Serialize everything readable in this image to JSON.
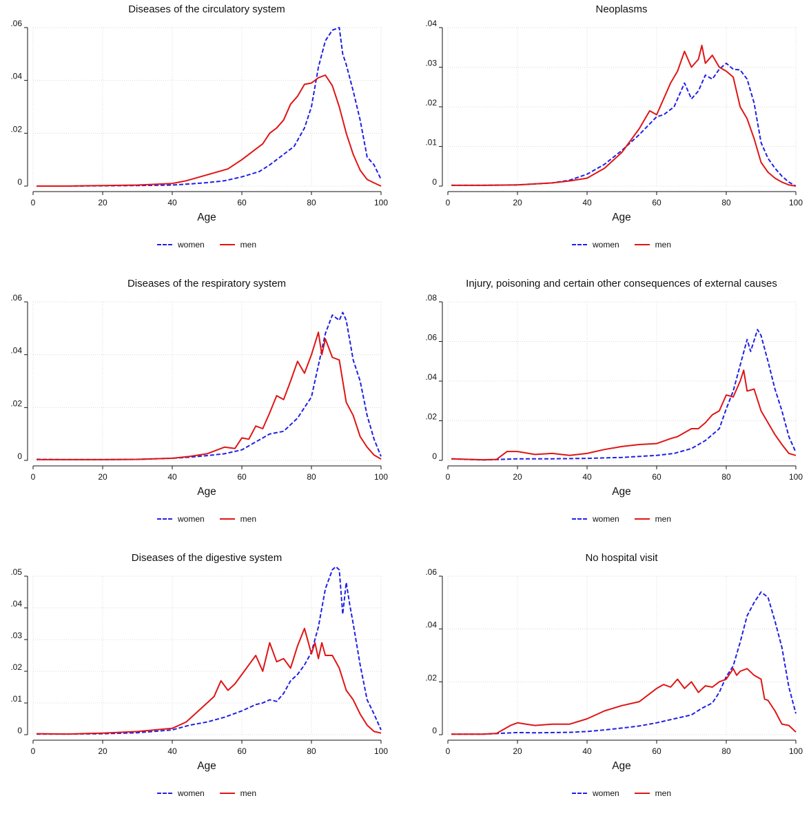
{
  "chart_data": [
    {
      "type": "line",
      "title": "Diseases of the circulatory system",
      "xlabel": "Age",
      "xlim": [
        0,
        100
      ],
      "ylim": [
        0,
        0.06
      ],
      "xticks": [
        0,
        20,
        40,
        60,
        80,
        100
      ],
      "xtick_labels": [
        "0",
        "20",
        "40",
        "60",
        "80",
        "100"
      ],
      "yticks": [
        0,
        0.02,
        0.04,
        0.06
      ],
      "ytick_labels": [
        "0",
        ".02",
        ".04",
        ".06"
      ],
      "grid": true,
      "legend_position": "bottom",
      "series": [
        {
          "name": "women",
          "color": "#1f1fe6",
          "dash": "dashed",
          "x": [
            1,
            10,
            20,
            30,
            40,
            45,
            50,
            55,
            60,
            65,
            68,
            70,
            72,
            75,
            78,
            80,
            82,
            84,
            86,
            88,
            89,
            90,
            92,
            94,
            96,
            98,
            100
          ],
          "y": [
            0,
            0,
            0.0001,
            0.0002,
            0.0004,
            0.0008,
            0.0013,
            0.002,
            0.0035,
            0.0055,
            0.008,
            0.01,
            0.012,
            0.015,
            0.022,
            0.03,
            0.045,
            0.055,
            0.059,
            0.06,
            0.05,
            0.046,
            0.036,
            0.025,
            0.011,
            0.008,
            0.0025
          ]
        },
        {
          "name": "men",
          "color": "#e01414",
          "dash": "solid",
          "x": [
            1,
            10,
            20,
            30,
            40,
            44,
            48,
            52,
            56,
            60,
            63,
            66,
            68,
            70,
            72,
            74,
            76,
            78,
            80,
            82,
            84,
            86,
            88,
            90,
            92,
            94,
            96,
            98,
            100
          ],
          "y": [
            0,
            0,
            0.0002,
            0.0004,
            0.001,
            0.002,
            0.0035,
            0.005,
            0.0065,
            0.01,
            0.013,
            0.016,
            0.02,
            0.022,
            0.025,
            0.031,
            0.034,
            0.0385,
            0.039,
            0.041,
            0.042,
            0.038,
            0.03,
            0.02,
            0.012,
            0.006,
            0.0025,
            0.0012,
            0
          ]
        }
      ]
    },
    {
      "type": "line",
      "title": "Neoplasms",
      "xlabel": "Age",
      "xlim": [
        0,
        100
      ],
      "ylim": [
        0,
        0.04
      ],
      "xticks": [
        0,
        20,
        40,
        60,
        80,
        100
      ],
      "xtick_labels": [
        "0",
        "20",
        "40",
        "60",
        "80",
        "100"
      ],
      "yticks": [
        0,
        0.01,
        0.02,
        0.03,
        0.04
      ],
      "ytick_labels": [
        "0",
        ".01",
        ".02",
        ".03",
        ".04"
      ],
      "grid": true,
      "legend_position": "bottom",
      "series": [
        {
          "name": "women",
          "color": "#1f1fe6",
          "dash": "dashed",
          "x": [
            1,
            10,
            20,
            30,
            35,
            40,
            45,
            50,
            55,
            60,
            62,
            65,
            68,
            70,
            72,
            74,
            76,
            78,
            80,
            82,
            84,
            86,
            88,
            90,
            92,
            94,
            96,
            98,
            100
          ],
          "y": [
            0.0002,
            0.0002,
            0.0003,
            0.0008,
            0.0015,
            0.003,
            0.0055,
            0.009,
            0.013,
            0.0175,
            0.018,
            0.02,
            0.026,
            0.022,
            0.024,
            0.028,
            0.027,
            0.0295,
            0.031,
            0.0295,
            0.0293,
            0.027,
            0.021,
            0.011,
            0.007,
            0.0045,
            0.0025,
            0.001,
            0
          ]
        },
        {
          "name": "men",
          "color": "#e01414",
          "dash": "solid",
          "x": [
            1,
            10,
            20,
            30,
            35,
            40,
            45,
            50,
            55,
            58,
            60,
            62,
            64,
            66,
            68,
            70,
            72,
            73,
            74,
            76,
            78,
            80,
            82,
            84,
            86,
            88,
            90,
            92,
            94,
            96,
            98,
            100
          ],
          "y": [
            0.0002,
            0.0002,
            0.0003,
            0.0008,
            0.0013,
            0.002,
            0.0045,
            0.0085,
            0.0145,
            0.019,
            0.018,
            0.022,
            0.026,
            0.029,
            0.034,
            0.03,
            0.032,
            0.0355,
            0.031,
            0.033,
            0.03,
            0.029,
            0.0275,
            0.02,
            0.017,
            0.012,
            0.006,
            0.0035,
            0.002,
            0.001,
            0.0003,
            0
          ]
        }
      ]
    },
    {
      "type": "line",
      "title": "Diseases of the respiratory system",
      "xlabel": "Age",
      "xlim": [
        0,
        100
      ],
      "ylim": [
        0,
        0.06
      ],
      "xticks": [
        0,
        20,
        40,
        60,
        80,
        100
      ],
      "xtick_labels": [
        "0",
        "20",
        "40",
        "60",
        "80",
        "100"
      ],
      "yticks": [
        0,
        0.02,
        0.04,
        0.06
      ],
      "ytick_labels": [
        "0",
        ".02",
        ".04",
        ".06"
      ],
      "grid": true,
      "legend_position": "bottom",
      "series": [
        {
          "name": "women",
          "color": "#1f1fe6",
          "dash": "dashed",
          "x": [
            1,
            10,
            20,
            30,
            40,
            45,
            50,
            55,
            60,
            64,
            68,
            72,
            76,
            80,
            82,
            84,
            86,
            88,
            89,
            90,
            92,
            94,
            96,
            98,
            100
          ],
          "y": [
            0.0004,
            0.0003,
            0.0003,
            0.0004,
            0.0008,
            0.0012,
            0.0018,
            0.0025,
            0.004,
            0.007,
            0.01,
            0.011,
            0.016,
            0.024,
            0.036,
            0.048,
            0.055,
            0.053,
            0.056,
            0.053,
            0.038,
            0.03,
            0.017,
            0.008,
            0.0015
          ]
        },
        {
          "name": "men",
          "color": "#e01414",
          "dash": "solid",
          "x": [
            1,
            10,
            20,
            30,
            40,
            45,
            50,
            55,
            58,
            60,
            62,
            64,
            66,
            68,
            70,
            72,
            74,
            76,
            78,
            80,
            82,
            83,
            84,
            86,
            88,
            90,
            92,
            94,
            96,
            98,
            100
          ],
          "y": [
            0.0003,
            0.0003,
            0.0003,
            0.0004,
            0.0008,
            0.0015,
            0.0025,
            0.005,
            0.0045,
            0.0085,
            0.008,
            0.013,
            0.012,
            0.018,
            0.0245,
            0.023,
            0.03,
            0.0375,
            0.033,
            0.04,
            0.0485,
            0.04,
            0.046,
            0.039,
            0.038,
            0.022,
            0.017,
            0.009,
            0.005,
            0.002,
            0.0005
          ]
        }
      ]
    },
    {
      "type": "line",
      "title": "Injury, poisoning and certain other consequences of external causes",
      "xlabel": "Age",
      "xlim": [
        0,
        100
      ],
      "ylim": [
        0,
        0.08
      ],
      "xticks": [
        0,
        20,
        40,
        60,
        80,
        100
      ],
      "xtick_labels": [
        "0",
        "20",
        "40",
        "60",
        "80",
        "100"
      ],
      "yticks": [
        0,
        0.02,
        0.04,
        0.06,
        0.08
      ],
      "ytick_labels": [
        "0",
        ".02",
        ".04",
        ".06",
        ".08"
      ],
      "grid": true,
      "legend_position": "bottom",
      "series": [
        {
          "name": "women",
          "color": "#1f1fe6",
          "dash": "dashed",
          "x": [
            1,
            10,
            15,
            20,
            30,
            40,
            50,
            60,
            65,
            70,
            74,
            78,
            80,
            82,
            84,
            86,
            87,
            89,
            90,
            92,
            94,
            96,
            98,
            100
          ],
          "y": [
            0.0008,
            0.0002,
            0.0005,
            0.0008,
            0.0008,
            0.001,
            0.0015,
            0.0025,
            0.0035,
            0.006,
            0.01,
            0.016,
            0.026,
            0.035,
            0.048,
            0.061,
            0.055,
            0.066,
            0.063,
            0.05,
            0.036,
            0.025,
            0.012,
            0.004
          ]
        },
        {
          "name": "men",
          "color": "#e01414",
          "dash": "solid",
          "x": [
            1,
            10,
            14,
            17,
            20,
            25,
            30,
            35,
            40,
            45,
            50,
            55,
            60,
            64,
            66,
            68,
            70,
            72,
            74,
            76,
            78,
            80,
            82,
            84,
            85,
            86,
            88,
            90,
            92,
            94,
            96,
            98,
            100
          ],
          "y": [
            0.0008,
            0.0003,
            0.0005,
            0.0045,
            0.0045,
            0.003,
            0.0035,
            0.0025,
            0.0035,
            0.0055,
            0.007,
            0.008,
            0.0085,
            0.011,
            0.012,
            0.014,
            0.016,
            0.016,
            0.019,
            0.023,
            0.025,
            0.033,
            0.032,
            0.04,
            0.0455,
            0.035,
            0.036,
            0.025,
            0.019,
            0.013,
            0.008,
            0.0035,
            0.0025
          ]
        }
      ]
    },
    {
      "type": "line",
      "title": "Diseases of the digestive system",
      "xlabel": "Age",
      "xlim": [
        0,
        100
      ],
      "ylim": [
        0,
        0.05
      ],
      "xticks": [
        0,
        20,
        40,
        60,
        80,
        100
      ],
      "xtick_labels": [
        "0",
        "20",
        "40",
        "60",
        "80",
        "100"
      ],
      "yticks": [
        0,
        0.01,
        0.02,
        0.03,
        0.04,
        0.05
      ],
      "ytick_labels": [
        "0",
        ".01",
        ".02",
        ".03",
        ".04",
        ".05"
      ],
      "grid": true,
      "legend_position": "bottom",
      "series": [
        {
          "name": "women",
          "color": "#1f1fe6",
          "dash": "dashed",
          "x": [
            1,
            10,
            20,
            30,
            40,
            45,
            50,
            55,
            60,
            62,
            64,
            66,
            68,
            70,
            72,
            74,
            76,
            78,
            80,
            82,
            84,
            86,
            87,
            88,
            89,
            90,
            91,
            92,
            94,
            96,
            98,
            100
          ],
          "y": [
            0.0002,
            0.0002,
            0.0003,
            0.0006,
            0.0015,
            0.003,
            0.004,
            0.0055,
            0.0075,
            0.0085,
            0.0095,
            0.01,
            0.011,
            0.0105,
            0.013,
            0.017,
            0.019,
            0.022,
            0.026,
            0.034,
            0.046,
            0.052,
            0.053,
            0.052,
            0.038,
            0.048,
            0.041,
            0.035,
            0.022,
            0.011,
            0.0065,
            0.0015
          ]
        },
        {
          "name": "men",
          "color": "#e01414",
          "dash": "solid",
          "x": [
            1,
            10,
            20,
            30,
            40,
            44,
            48,
            52,
            54,
            56,
            58,
            60,
            62,
            64,
            66,
            68,
            70,
            72,
            74,
            76,
            78,
            80,
            81,
            82,
            83,
            84,
            86,
            88,
            90,
            92,
            94,
            96,
            98,
            100
          ],
          "y": [
            0.0003,
            0.0002,
            0.0005,
            0.001,
            0.002,
            0.004,
            0.008,
            0.012,
            0.017,
            0.014,
            0.016,
            0.019,
            0.022,
            0.025,
            0.02,
            0.029,
            0.023,
            0.024,
            0.021,
            0.028,
            0.0335,
            0.0255,
            0.029,
            0.024,
            0.029,
            0.025,
            0.025,
            0.021,
            0.014,
            0.011,
            0.0065,
            0.003,
            0.001,
            0.0005
          ]
        }
      ]
    },
    {
      "type": "line",
      "title": "No hospital visit",
      "xlabel": "Age",
      "xlim": [
        0,
        100
      ],
      "ylim": [
        0,
        0.06
      ],
      "xticks": [
        0,
        20,
        40,
        60,
        80,
        100
      ],
      "xtick_labels": [
        "0",
        "20",
        "40",
        "60",
        "80",
        "100"
      ],
      "yticks": [
        0,
        0.02,
        0.04,
        0.06
      ],
      "ytick_labels": [
        "0",
        ".02",
        ".04",
        ".06"
      ],
      "grid": true,
      "legend_position": "bottom",
      "series": [
        {
          "name": "women",
          "color": "#1f1fe6",
          "dash": "dashed",
          "x": [
            1,
            10,
            15,
            20,
            25,
            30,
            35,
            40,
            45,
            50,
            55,
            60,
            65,
            70,
            73,
            76,
            78,
            80,
            82,
            84,
            86,
            88,
            90,
            92,
            94,
            96,
            98,
            100
          ],
          "y": [
            0.0002,
            0.0002,
            0.0005,
            0.0008,
            0.0007,
            0.0008,
            0.0009,
            0.0012,
            0.0018,
            0.0025,
            0.0033,
            0.0045,
            0.006,
            0.0075,
            0.01,
            0.012,
            0.016,
            0.022,
            0.026,
            0.035,
            0.045,
            0.05,
            0.054,
            0.052,
            0.043,
            0.033,
            0.018,
            0.008
          ]
        },
        {
          "name": "men",
          "color": "#e01414",
          "dash": "solid",
          "x": [
            1,
            10,
            14,
            18,
            20,
            25,
            30,
            35,
            40,
            45,
            50,
            55,
            60,
            62,
            64,
            66,
            68,
            70,
            72,
            74,
            76,
            78,
            80,
            82,
            83,
            84,
            86,
            88,
            90,
            91,
            92,
            94,
            96,
            98,
            100
          ],
          "y": [
            0.0002,
            0.0002,
            0.0005,
            0.0035,
            0.0045,
            0.0035,
            0.004,
            0.004,
            0.006,
            0.009,
            0.011,
            0.0125,
            0.0175,
            0.019,
            0.018,
            0.021,
            0.0175,
            0.02,
            0.016,
            0.0185,
            0.018,
            0.02,
            0.021,
            0.025,
            0.0225,
            0.024,
            0.025,
            0.0225,
            0.021,
            0.0135,
            0.013,
            0.009,
            0.004,
            0.0035,
            0.001
          ]
        }
      ]
    }
  ]
}
